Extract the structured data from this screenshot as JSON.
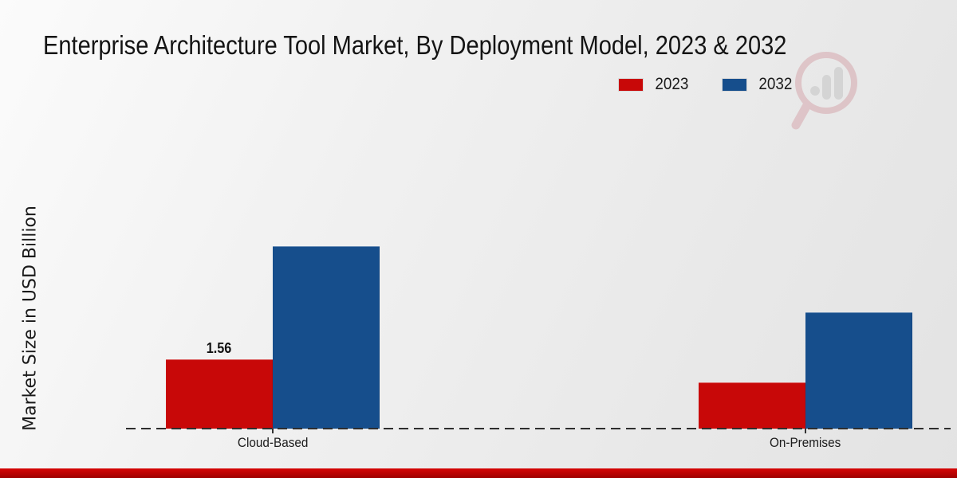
{
  "header": {
    "title": "Enterprise Architecture Tool Market, By Deployment Model, 2023 & 2032"
  },
  "y_axis": {
    "label": "Market Size in USD Billion"
  },
  "legend": {
    "items": [
      {
        "label": "2023",
        "color": "#c80808"
      },
      {
        "label": "2032",
        "color": "#164e8c"
      }
    ]
  },
  "chart_data": {
    "type": "bar",
    "title": "Enterprise Architecture Tool Market, By Deployment Model, 2023 & 2032",
    "categories": [
      "Cloud-Based",
      "On-Premises"
    ],
    "series": [
      {
        "name": "2023",
        "color": "#c80808",
        "values": [
          1.56,
          1.04
        ]
      },
      {
        "name": "2032",
        "color": "#164e8c",
        "values": [
          4.1,
          2.62
        ]
      }
    ],
    "data_labels": [
      {
        "series": "2023",
        "category": "Cloud-Based",
        "text": "1.56"
      }
    ],
    "xlabel": "",
    "ylabel": "Market Size in USD Billion",
    "ylim": [
      0,
      4.5
    ],
    "grid": false,
    "legend_position": "top-right",
    "baseline_style": "dashed"
  },
  "watermark": {
    "icon": "magnifier-bar-chart-logo"
  },
  "footer": {
    "bar_color": "#c00000"
  }
}
